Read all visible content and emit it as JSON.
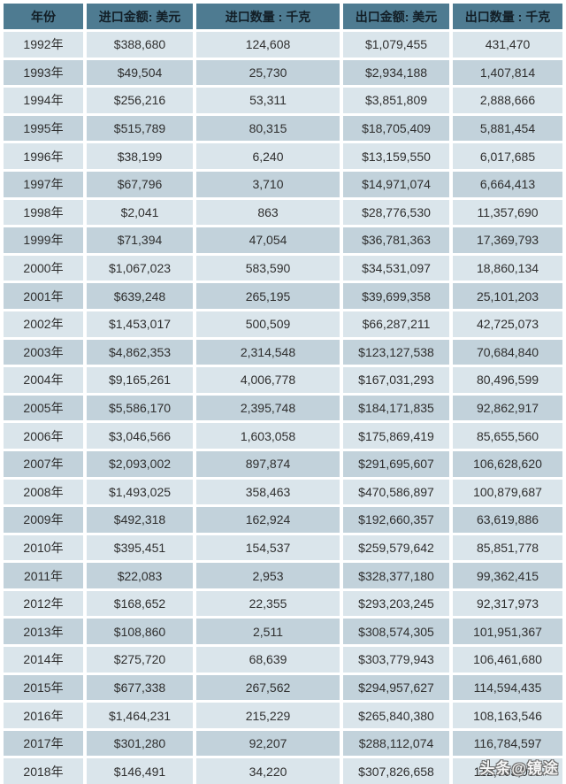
{
  "colors": {
    "header_bg": "#4e7b91",
    "header_text": "#121e26",
    "row_light": "#dae5eb",
    "row_dark": "#c2d2db",
    "cell_text": "#2f2f2f",
    "gutter": "#ffffff"
  },
  "watermark": {
    "text": "头条@镜途"
  },
  "chart_data": {
    "type": "table",
    "columns": [
      "年份",
      "进口金额: 美元",
      "进口数量 : 千克",
      "出口金额: 美元",
      "出口数量 : 千克"
    ],
    "rows": [
      [
        "1992年",
        "$388,680",
        "124,608",
        "$1,079,455",
        "431,470"
      ],
      [
        "1993年",
        "$49,504",
        "25,730",
        "$2,934,188",
        "1,407,814"
      ],
      [
        "1994年",
        "$256,216",
        "53,311",
        "$3,851,809",
        "2,888,666"
      ],
      [
        "1995年",
        "$515,789",
        "80,315",
        "$18,705,409",
        "5,881,454"
      ],
      [
        "1996年",
        "$38,199",
        "6,240",
        "$13,159,550",
        "6,017,685"
      ],
      [
        "1997年",
        "$67,796",
        "3,710",
        "$14,971,074",
        "6,664,413"
      ],
      [
        "1998年",
        "$2,041",
        "863",
        "$28,776,530",
        "11,357,690"
      ],
      [
        "1999年",
        "$71,394",
        "47,054",
        "$36,781,363",
        "17,369,793"
      ],
      [
        "2000年",
        "$1,067,023",
        "583,590",
        "$34,531,097",
        "18,860,134"
      ],
      [
        "2001年",
        "$639,248",
        "265,195",
        "$39,699,358",
        "25,101,203"
      ],
      [
        "2002年",
        "$1,453,017",
        "500,509",
        "$66,287,211",
        "42,725,073"
      ],
      [
        "2003年",
        "$4,862,353",
        "2,314,548",
        "$123,127,538",
        "70,684,840"
      ],
      [
        "2004年",
        "$9,165,261",
        "4,006,778",
        "$167,031,293",
        "80,496,599"
      ],
      [
        "2005年",
        "$5,586,170",
        "2,395,748",
        "$184,171,835",
        "92,862,917"
      ],
      [
        "2006年",
        "$3,046,566",
        "1,603,058",
        "$175,869,419",
        "85,655,560"
      ],
      [
        "2007年",
        "$2,093,002",
        "897,874",
        "$291,695,607",
        "106,628,620"
      ],
      [
        "2008年",
        "$1,493,025",
        "358,463",
        "$470,586,897",
        "100,879,687"
      ],
      [
        "2009年",
        "$492,318",
        "162,924",
        "$192,660,357",
        "63,619,886"
      ],
      [
        "2010年",
        "$395,451",
        "154,537",
        "$259,579,642",
        "85,851,778"
      ],
      [
        "2011年",
        "$22,083",
        "2,953",
        "$328,377,180",
        "99,362,415"
      ],
      [
        "2012年",
        "$168,652",
        "22,355",
        "$293,203,245",
        "92,317,973"
      ],
      [
        "2013年",
        "$108,860",
        "2,511",
        "$308,574,305",
        "101,951,367"
      ],
      [
        "2014年",
        "$275,720",
        "68,639",
        "$303,779,943",
        "106,461,680"
      ],
      [
        "2015年",
        "$677,338",
        "267,562",
        "$294,957,627",
        "114,594,435"
      ],
      [
        "2016年",
        "$1,464,231",
        "215,229",
        "$265,840,380",
        "108,163,546"
      ],
      [
        "2017年",
        "$301,280",
        "92,207",
        "$288,112,074",
        "116,784,597"
      ],
      [
        "2018年",
        "$146,491",
        "34,220",
        "$307,826,658",
        "112,703,033"
      ]
    ]
  }
}
